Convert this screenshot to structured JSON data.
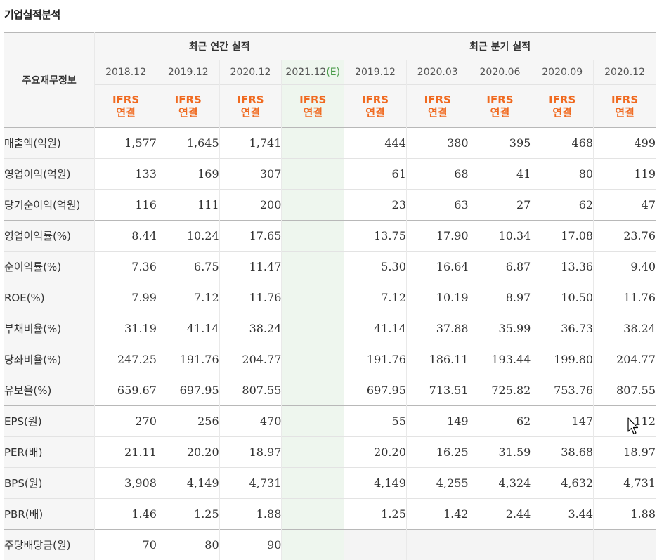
{
  "page_title": "기업실적분석",
  "header": {
    "corner_label": "주요재무정보",
    "annual_group_label": "최근 연간 실적",
    "quarter_group_label": "최근 분기 실적",
    "annual_periods": [
      "2018.12",
      "2019.12",
      "2020.12"
    ],
    "estimate_period": "2021.12",
    "estimate_marker": "(E)",
    "quarter_periods": [
      "2019.12",
      "2020.03",
      "2020.06",
      "2020.09",
      "2020.12"
    ],
    "ifrs_line1": "IFRS",
    "ifrs_line2": "연결"
  },
  "rows": [
    {
      "label": "매출액(억원)",
      "annual": [
        "1,577",
        "1,645",
        "1,741"
      ],
      "estimate": "",
      "quarter": [
        "444",
        "380",
        "395",
        "468",
        "499"
      ]
    },
    {
      "label": "영업이익(억원)",
      "annual": [
        "133",
        "169",
        "307"
      ],
      "estimate": "",
      "quarter": [
        "61",
        "68",
        "41",
        "80",
        "119"
      ]
    },
    {
      "label": "당기순이익(억원)",
      "annual": [
        "116",
        "111",
        "200"
      ],
      "estimate": "",
      "quarter": [
        "23",
        "63",
        "27",
        "62",
        "47"
      ]
    },
    {
      "label": "영업이익률(%)",
      "annual": [
        "8.44",
        "10.24",
        "17.65"
      ],
      "estimate": "",
      "quarter": [
        "13.75",
        "17.90",
        "10.34",
        "17.08",
        "23.76"
      ]
    },
    {
      "label": "순이익률(%)",
      "annual": [
        "7.36",
        "6.75",
        "11.47"
      ],
      "estimate": "",
      "quarter": [
        "5.30",
        "16.64",
        "6.87",
        "13.36",
        "9.40"
      ]
    },
    {
      "label": "ROE(%)",
      "annual": [
        "7.99",
        "7.12",
        "11.76"
      ],
      "estimate": "",
      "quarter": [
        "7.12",
        "10.19",
        "8.97",
        "10.50",
        "11.76"
      ]
    },
    {
      "label": "부채비율(%)",
      "annual": [
        "31.19",
        "41.14",
        "38.24"
      ],
      "estimate": "",
      "quarter": [
        "41.14",
        "37.88",
        "35.99",
        "36.73",
        "38.24"
      ]
    },
    {
      "label": "당좌비율(%)",
      "annual": [
        "247.25",
        "191.76",
        "204.77"
      ],
      "estimate": "",
      "quarter": [
        "191.76",
        "186.11",
        "193.44",
        "199.80",
        "204.77"
      ]
    },
    {
      "label": "유보율(%)",
      "annual": [
        "659.67",
        "697.95",
        "807.55"
      ],
      "estimate": "",
      "quarter": [
        "697.95",
        "713.51",
        "725.82",
        "753.76",
        "807.55"
      ]
    },
    {
      "label": "EPS(원)",
      "annual": [
        "270",
        "256",
        "470"
      ],
      "estimate": "",
      "quarter": [
        "55",
        "149",
        "62",
        "147",
        "112"
      ]
    },
    {
      "label": "PER(배)",
      "annual": [
        "21.11",
        "20.20",
        "18.97"
      ],
      "estimate": "",
      "quarter": [
        "20.20",
        "16.25",
        "31.59",
        "38.68",
        "18.97"
      ]
    },
    {
      "label": "BPS(원)",
      "annual": [
        "3,908",
        "4,149",
        "4,731"
      ],
      "estimate": "",
      "quarter": [
        "4,149",
        "4,255",
        "4,324",
        "4,632",
        "4,731"
      ]
    },
    {
      "label": "PBR(배)",
      "annual": [
        "1.46",
        "1.25",
        "1.88"
      ],
      "estimate": "",
      "quarter": [
        "1.25",
        "1.42",
        "2.44",
        "3.44",
        "1.88"
      ]
    },
    {
      "label": "주당배당금(원)",
      "annual": [
        "70",
        "80",
        "90"
      ],
      "estimate": "",
      "quarter": [
        "",
        "",
        "",
        "",
        ""
      ]
    }
  ],
  "colors": {
    "ifrs": "#f06a20",
    "estimate_marker": "#4a9b4a",
    "estimate_bg": "#eef6ee",
    "header_bg": "#f6f6f6"
  },
  "icons": {
    "cursor": "mouse-pointer-icon"
  }
}
